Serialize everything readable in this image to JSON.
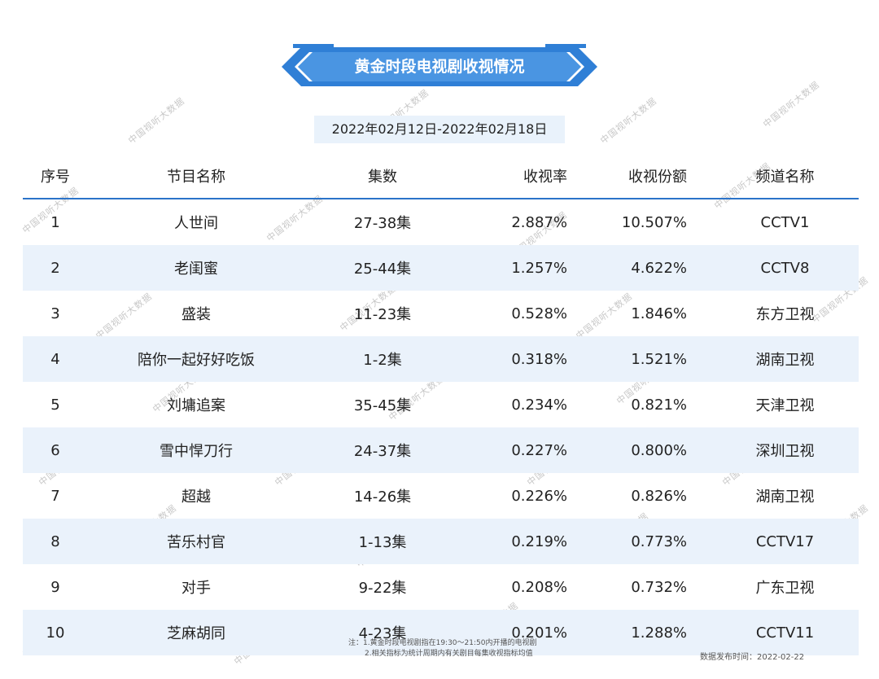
{
  "title": "黄金时段电视剧收视情况",
  "date_range": "2022年02月12日-2022年02月18日",
  "columns": [
    "序号",
    "节目名称",
    "集数",
    "收视率",
    "收视份额",
    "频道名称"
  ],
  "rows": [
    [
      "1",
      "人世间",
      "27-38集",
      "2.887%",
      "10.507%",
      "CCTV1"
    ],
    [
      "2",
      "老闺蜜",
      "25-44集",
      "1.257%",
      "4.622%",
      "CCTV8"
    ],
    [
      "3",
      "盛装",
      "11-23集",
      "0.528%",
      "1.846%",
      "东方卫视"
    ],
    [
      "4",
      "陪你一起好好吃饭",
      "1-2集",
      "0.318%",
      "1.521%",
      "湖南卫视"
    ],
    [
      "5",
      "刘墉追案",
      "35-45集",
      "0.234%",
      "0.821%",
      "天津卫视"
    ],
    [
      "6",
      "雪中悍刀行",
      "24-37集",
      "0.227%",
      "0.800%",
      "深圳卫视"
    ],
    [
      "7",
      "超越",
      "14-26集",
      "0.226%",
      "0.826%",
      "湖南卫视"
    ],
    [
      "8",
      "苦乐村官",
      "1-13集",
      "0.219%",
      "0.773%",
      "CCTV17"
    ],
    [
      "9",
      "对手",
      "9-22集",
      "0.208%",
      "0.732%",
      "广东卫视"
    ],
    [
      "10",
      "芝麻胡同",
      "4-23集",
      "0.201%",
      "1.288%",
      "CCTV11"
    ]
  ],
  "notes": [
    "注：1.黄金时段电视剧指在19:30～21:50内开播的电视剧",
    "2.相关指标为统计周期内有关剧目每集收视指标均值"
  ],
  "published": "数据发布时间：2022-02-22",
  "watermark": "中国视听大数据",
  "colors": {
    "accent": "#2b73c9",
    "banner": "#3a86d9",
    "row_alt": "#eaf2fb"
  }
}
